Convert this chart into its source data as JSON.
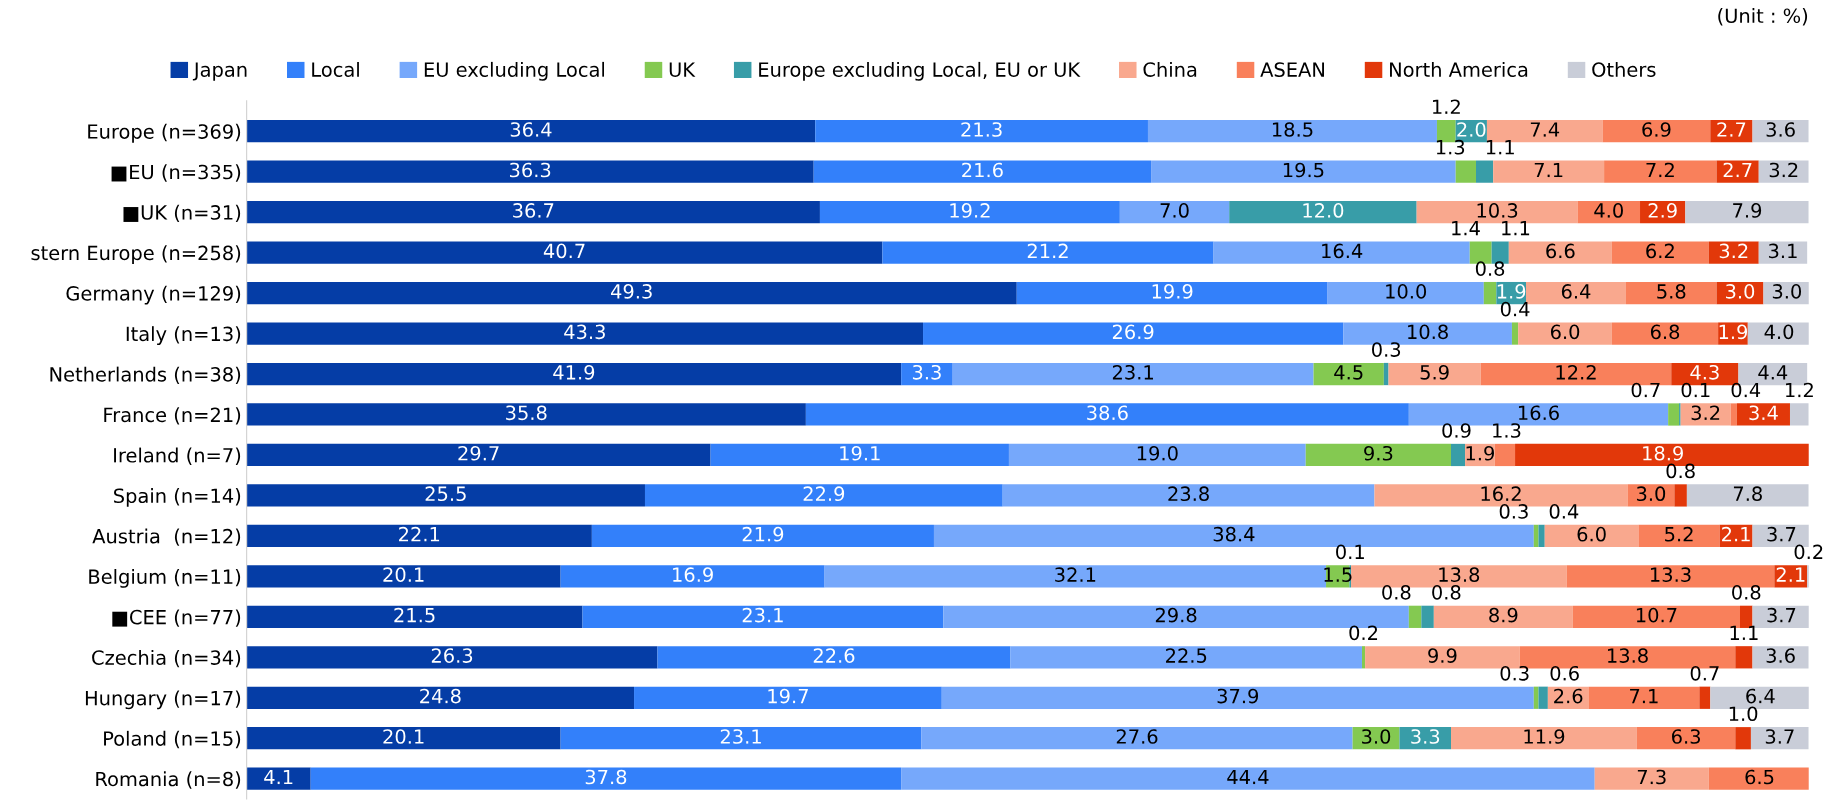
{
  "chart_data": {
    "type": "bar",
    "orientation": "horizontal",
    "stacked": true,
    "grid": false,
    "legend": "top",
    "tick_labels": "y",
    "xlim": [
      0,
      100
    ],
    "annotations": [
      "(Unit : %)"
    ],
    "categories": [
      "Europe (n=369)",
      "■EU (n=335)",
      "■UK (n=31)",
      "stern Europe (n=258)",
      "Germany (n=129)",
      "Italy (n=13)",
      "Netherlands (n=38)",
      "France (n=21)",
      "Ireland (n=7)",
      "Spain (n=14)",
      "Austria  (n=12)",
      "Belgium (n=11)",
      "■CEE (n=77)",
      "Czechia (n=34)",
      "Hungary (n=17)",
      "Poland (n=15)",
      "Romania (n=8)"
    ],
    "series": [
      {
        "name": "Japan",
        "color": "#053da6",
        "values": [
          36.4,
          36.3,
          36.7,
          40.7,
          49.3,
          43.3,
          41.9,
          35.8,
          29.7,
          25.5,
          22.1,
          20.1,
          21.5,
          26.3,
          24.8,
          20.1,
          4.1
        ],
        "value_labels": [
          "36.4",
          "36.3",
          "36.7",
          "40.7",
          "49.3",
          "43.3",
          "41.9",
          "35.8",
          "29.7",
          "25.5",
          "22.1",
          "20.1",
          "21.5",
          "26.3",
          "24.8",
          "20.1",
          "4.1"
        ]
      },
      {
        "name": "Local",
        "color": "#3380fa",
        "values": [
          21.3,
          21.6,
          19.2,
          21.2,
          19.9,
          26.9,
          3.3,
          38.6,
          19.1,
          22.9,
          21.9,
          16.9,
          23.1,
          22.6,
          19.7,
          23.1,
          37.8
        ],
        "value_labels": [
          "21.3",
          "21.6",
          "19.2",
          "21.2",
          "19.9",
          "26.9",
          "3.3",
          "38.6",
          "19.1",
          "22.9",
          "21.9",
          "16.9",
          "23.1",
          "22.6",
          "19.7",
          "23.1",
          "37.8"
        ]
      },
      {
        "name": "EU excluding Local",
        "color": "#76a8fb",
        "values": [
          18.5,
          19.5,
          7.0,
          16.4,
          10.0,
          10.8,
          23.1,
          16.6,
          19.0,
          23.8,
          38.4,
          32.1,
          29.8,
          22.5,
          37.9,
          27.6,
          44.4
        ],
        "value_labels": [
          "18.5",
          "19.5",
          "7.0",
          "16.4",
          "10.0",
          "10.8",
          "23.1",
          "16.6",
          "19.0",
          "23.8",
          "38.4",
          "32.1",
          "29.8",
          "22.5",
          "37.9",
          "27.6",
          "44.4"
        ]
      },
      {
        "name": "UK",
        "color": "#84c951",
        "values": [
          1.2,
          1.3,
          null,
          1.4,
          0.8,
          0.4,
          4.5,
          0.7,
          9.3,
          null,
          0.3,
          1.5,
          0.8,
          0.2,
          0.3,
          3.0,
          null
        ],
        "value_labels": [
          "1.2",
          "1.3",
          null,
          "1.4",
          "0.8",
          "0.4",
          "4.5",
          "0.7",
          "9.3",
          null,
          "0.3",
          "1.5",
          "0.8",
          "0.2",
          "0.3",
          "3.0",
          null
        ]
      },
      {
        "name": "Europe excluding Local, EU or UK",
        "color": "#389da8",
        "values": [
          2.0,
          1.1,
          12.0,
          1.1,
          1.9,
          null,
          0.3,
          0.1,
          0.9,
          null,
          0.4,
          0.1,
          0.8,
          null,
          0.6,
          3.3,
          null
        ],
        "value_labels": [
          "2.0",
          "1.1",
          "12.0",
          "1.1",
          "1.9",
          null,
          "0.3",
          "0.1",
          "0.9",
          null,
          "0.4",
          "0.1",
          "0.8",
          null,
          "0.6",
          "3.3",
          null
        ]
      },
      {
        "name": "China",
        "color": "#f9a88e",
        "values": [
          7.4,
          7.1,
          10.3,
          6.6,
          6.4,
          6.0,
          5.9,
          3.2,
          1.9,
          16.2,
          6.0,
          13.8,
          8.9,
          9.9,
          2.6,
          11.9,
          7.3
        ],
        "value_labels": [
          "7.4",
          "7.1",
          "10.3",
          "6.6",
          "6.4",
          "6.0",
          "5.9",
          "3.2",
          "1.9",
          "16.2",
          "6.0",
          "13.8",
          "8.9",
          "9.9",
          "2.6",
          "11.9",
          "7.3"
        ]
      },
      {
        "name": "ASEAN",
        "color": "#f9805b",
        "values": [
          6.9,
          7.2,
          4.0,
          6.2,
          5.8,
          6.8,
          12.2,
          0.4,
          1.3,
          3.0,
          5.2,
          13.3,
          10.7,
          13.8,
          7.1,
          6.3,
          6.5
        ],
        "value_labels": [
          "6.9",
          "7.2",
          "4.0",
          "6.2",
          "5.8",
          "6.8",
          "12.2",
          "0.4",
          "1.3",
          "3.0",
          "5.2",
          "13.3",
          "10.7",
          "13.8",
          "7.1",
          "6.3",
          "6.5"
        ]
      },
      {
        "name": "North America",
        "color": "#e2380a",
        "values": [
          2.7,
          2.7,
          2.9,
          3.2,
          3.0,
          1.9,
          4.3,
          3.4,
          18.9,
          0.8,
          2.1,
          2.1,
          0.8,
          1.1,
          0.7,
          1.0,
          null
        ],
        "value_labels": [
          "2.7",
          "2.7",
          "2.9",
          "3.2",
          "3.0",
          "1.9",
          "4.3",
          "3.4",
          "18.9",
          "0.8",
          "2.1",
          "2.1",
          "0.8",
          "1.1",
          "0.7",
          "1.0",
          null
        ]
      },
      {
        "name": "Others",
        "color": "#c9cdd8",
        "values": [
          3.6,
          3.2,
          7.9,
          3.1,
          3.0,
          4.0,
          4.4,
          1.2,
          null,
          7.8,
          3.7,
          0.2,
          3.7,
          3.6,
          6.4,
          3.7,
          null
        ],
        "value_labels": [
          "3.6",
          "3.2",
          "7.9",
          "3.1",
          "3.0",
          "4.0",
          "4.4",
          "1.2",
          null,
          "7.8",
          "3.7",
          "0.2",
          "3.7",
          "3.6",
          "6.4",
          "3.7",
          null
        ]
      }
    ]
  }
}
